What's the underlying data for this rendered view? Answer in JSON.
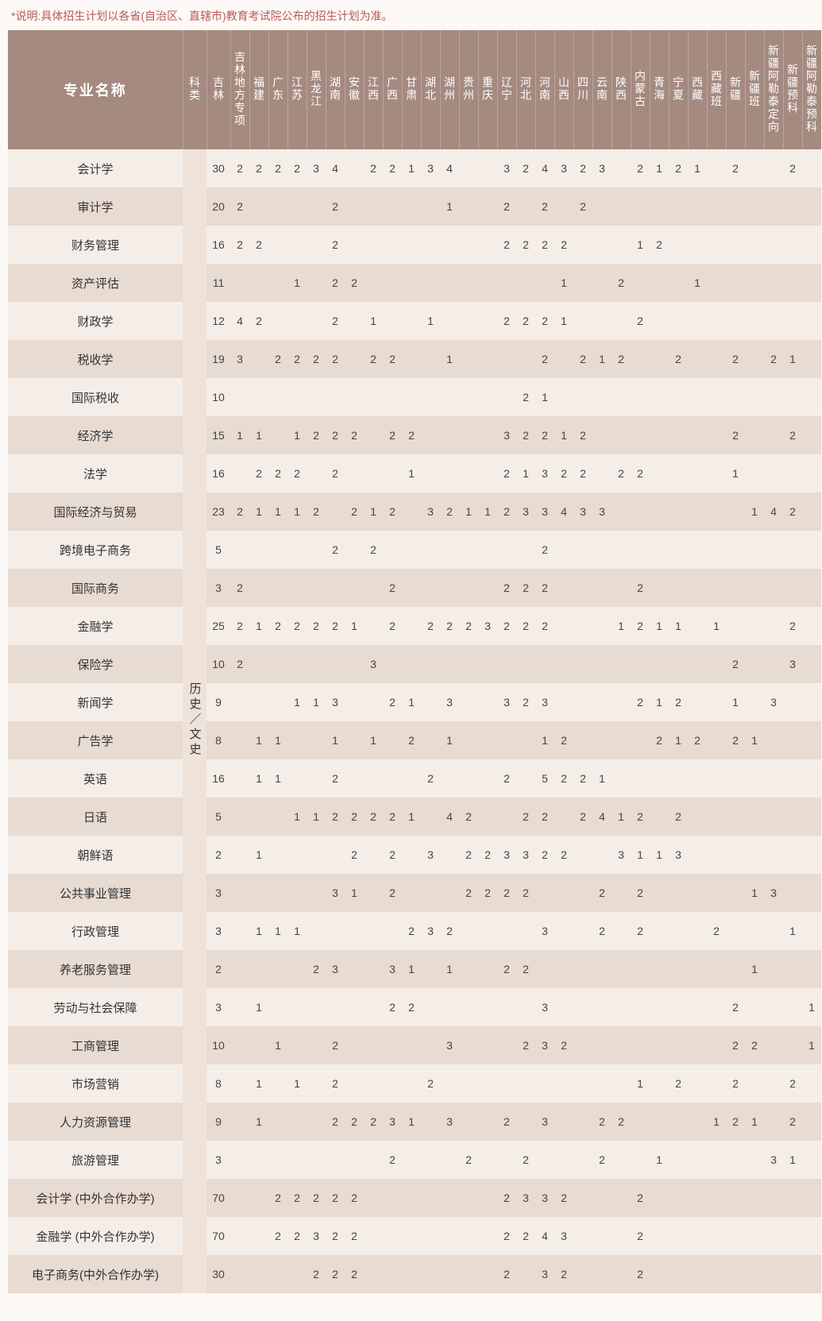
{
  "note": "*说明:具体招生计划以各省(自治区、直辖市)教育考试院公布的招生计划为准。",
  "header": {
    "major": "专业名称",
    "category": "科类",
    "provinces": [
      "吉林",
      "吉林地方专项",
      "福建",
      "广东",
      "江苏",
      "黑龙江",
      "湖南",
      "安徽",
      "江西",
      "广西",
      "甘肃",
      "湖北",
      "湖州",
      "贵州",
      "重庆",
      "辽宁",
      "河北",
      "河南",
      "山西",
      "四川",
      "云南",
      "陕西",
      "内蒙古",
      "青海",
      "宁夏",
      "西藏",
      "西藏班",
      "新疆",
      "新疆班",
      "新疆阿勒泰定向",
      "新疆预科",
      "新疆阿勒泰预科"
    ]
  },
  "category_label": "历史／文史",
  "rows": [
    {
      "major": "会计学",
      "v": [
        "30",
        "2",
        "2",
        "2",
        "2",
        "3",
        "4",
        "",
        "2",
        "2",
        "1",
        "3",
        "4",
        "",
        "",
        "3",
        "2",
        "4",
        "3",
        "2",
        "3",
        "",
        "2",
        "1",
        "2",
        "1",
        "",
        "2",
        "",
        "",
        "2",
        ""
      ]
    },
    {
      "major": "审计学",
      "v": [
        "20",
        "2",
        "",
        "",
        "",
        "",
        "2",
        "",
        "",
        "",
        "",
        "",
        "1",
        "",
        "",
        "2",
        "",
        "2",
        "",
        "2",
        "",
        "",
        "",
        "",
        "",
        "",
        "",
        "",
        "",
        "",
        "",
        ""
      ]
    },
    {
      "major": "财务管理",
      "v": [
        "16",
        "2",
        "2",
        "",
        "",
        "",
        "2",
        "",
        "",
        "",
        "",
        "",
        "",
        "",
        "",
        "2",
        "2",
        "2",
        "2",
        "",
        "",
        "",
        "1",
        "2",
        "",
        "",
        "",
        "",
        "",
        "",
        "",
        ""
      ]
    },
    {
      "major": "资产评估",
      "v": [
        "11",
        "",
        "",
        "",
        "1",
        "",
        "2",
        "2",
        "",
        "",
        "",
        "",
        "",
        "",
        "",
        "",
        "",
        "",
        "1",
        "",
        "",
        "2",
        "",
        "",
        "",
        "1",
        "",
        "",
        "",
        "",
        "",
        ""
      ]
    },
    {
      "major": "财政学",
      "v": [
        "12",
        "4",
        "2",
        "",
        "",
        "",
        "2",
        "",
        "1",
        "",
        "",
        "1",
        "",
        "",
        "",
        "2",
        "2",
        "2",
        "1",
        "",
        "",
        "",
        "2",
        "",
        "",
        "",
        "",
        "",
        "",
        "",
        "",
        ""
      ]
    },
    {
      "major": "税收学",
      "v": [
        "19",
        "3",
        "",
        "2",
        "2",
        "2",
        "2",
        "",
        "2",
        "2",
        "",
        "",
        "1",
        "",
        "",
        "",
        "",
        "2",
        "",
        "2",
        "1",
        "2",
        "",
        "",
        "2",
        "",
        "",
        "2",
        "",
        "2",
        "1",
        ""
      ]
    },
    {
      "major": "国际税收",
      "v": [
        "10",
        "",
        "",
        "",
        "",
        "",
        "",
        "",
        "",
        "",
        "",
        "",
        "",
        "",
        "",
        "",
        "2",
        "1",
        "",
        "",
        "",
        "",
        "",
        "",
        "",
        "",
        "",
        "",
        "",
        "",
        "",
        ""
      ]
    },
    {
      "major": "经济学",
      "v": [
        "15",
        "1",
        "1",
        "",
        "1",
        "2",
        "2",
        "2",
        "",
        "2",
        "2",
        "",
        "",
        "",
        "",
        "3",
        "2",
        "2",
        "1",
        "2",
        "",
        "",
        "",
        "",
        "",
        "",
        "",
        "2",
        "",
        "",
        "2",
        ""
      ]
    },
    {
      "major": "法学",
      "v": [
        "16",
        "",
        "2",
        "2",
        "2",
        "",
        "2",
        "",
        "",
        "",
        "1",
        "",
        "",
        "",
        "",
        "2",
        "1",
        "3",
        "2",
        "2",
        "",
        "2",
        "2",
        "",
        "",
        "",
        "",
        "1",
        "",
        "",
        "",
        ""
      ]
    },
    {
      "major": "国际经济与贸易",
      "v": [
        "23",
        "2",
        "1",
        "1",
        "1",
        "2",
        "",
        "2",
        "1",
        "2",
        "",
        "3",
        "2",
        "1",
        "1",
        "2",
        "3",
        "3",
        "4",
        "3",
        "3",
        "",
        "",
        "",
        "",
        "",
        "",
        "",
        "1",
        "4",
        "2",
        ""
      ]
    },
    {
      "major": "跨境电子商务",
      "v": [
        "5",
        "",
        "",
        "",
        "",
        "",
        "2",
        "",
        "2",
        "",
        "",
        "",
        "",
        "",
        "",
        "",
        "",
        "2",
        "",
        "",
        "",
        "",
        "",
        "",
        "",
        "",
        "",
        "",
        "",
        "",
        "",
        ""
      ]
    },
    {
      "major": "国际商务",
      "v": [
        "3",
        "2",
        "",
        "",
        "",
        "",
        "",
        "",
        "",
        "2",
        "",
        "",
        "",
        "",
        "",
        "2",
        "2",
        "2",
        "",
        "",
        "",
        "",
        "2",
        "",
        "",
        "",
        "",
        "",
        "",
        "",
        "",
        ""
      ]
    },
    {
      "major": "金融学",
      "v": [
        "25",
        "2",
        "1",
        "2",
        "2",
        "2",
        "2",
        "1",
        "",
        "2",
        "",
        "2",
        "2",
        "2",
        "3",
        "2",
        "2",
        "2",
        "",
        "",
        "",
        "1",
        "2",
        "1",
        "1",
        "",
        "1",
        "",
        "",
        "",
        "2",
        ""
      ]
    },
    {
      "major": "保险学",
      "v": [
        "10",
        "2",
        "",
        "",
        "",
        "",
        "",
        "",
        "3",
        "",
        "",
        "",
        "",
        "",
        "",
        "",
        "",
        "",
        "",
        "",
        "",
        "",
        "",
        "",
        "",
        "",
        "",
        "2",
        "",
        "",
        "3",
        ""
      ]
    },
    {
      "major": "新闻学",
      "v": [
        "9",
        "",
        "",
        "",
        "1",
        "1",
        "3",
        "",
        "",
        "2",
        "1",
        "",
        "3",
        "",
        "",
        "3",
        "2",
        "3",
        "",
        "",
        "",
        "",
        "2",
        "1",
        "2",
        "",
        "",
        "1",
        "",
        "3",
        "",
        ""
      ]
    },
    {
      "major": "广告学",
      "v": [
        "8",
        "",
        "1",
        "1",
        "",
        "",
        "1",
        "",
        "1",
        "",
        "2",
        "",
        "1",
        "",
        "",
        "",
        "",
        "1",
        "2",
        "",
        "",
        "",
        "",
        "2",
        "1",
        "2",
        "",
        "2",
        "1",
        "",
        "",
        ""
      ]
    },
    {
      "major": "英语",
      "v": [
        "16",
        "",
        "1",
        "1",
        "",
        "",
        "2",
        "",
        "",
        "",
        "",
        "2",
        "",
        "",
        "",
        "2",
        "",
        "5",
        "2",
        "2",
        "1",
        "",
        "",
        "",
        "",
        "",
        "",
        "",
        "",
        "",
        "",
        ""
      ]
    },
    {
      "major": "日语",
      "v": [
        "5",
        "",
        "",
        "",
        "1",
        "1",
        "2",
        "2",
        "2",
        "2",
        "1",
        "",
        "4",
        "2",
        "",
        "",
        "2",
        "2",
        "",
        "2",
        "4",
        "1",
        "2",
        "",
        "2",
        "",
        "",
        "",
        "",
        "",
        "",
        ""
      ]
    },
    {
      "major": "朝鲜语",
      "v": [
        "2",
        "",
        "1",
        "",
        "",
        "",
        "",
        "2",
        "",
        "2",
        "",
        "3",
        "",
        "2",
        "2",
        "3",
        "3",
        "2",
        "2",
        "",
        "",
        "3",
        "1",
        "1",
        "3",
        "",
        "",
        "",
        "",
        "",
        "",
        ""
      ]
    },
    {
      "major": "公共事业管理",
      "v": [
        "3",
        "",
        "",
        "",
        "",
        "",
        "3",
        "1",
        "",
        "2",
        "",
        "",
        "",
        "2",
        "2",
        "2",
        "2",
        "",
        "",
        "",
        "2",
        "",
        "2",
        "",
        "",
        "",
        "",
        "",
        "1",
        "3",
        "",
        ""
      ]
    },
    {
      "major": "行政管理",
      "v": [
        "3",
        "",
        "1",
        "1",
        "1",
        "",
        "",
        "",
        "",
        "",
        "2",
        "3",
        "2",
        "",
        "",
        "",
        "",
        "3",
        "",
        "",
        "2",
        "",
        "2",
        "",
        "",
        "",
        "2",
        "",
        "",
        "",
        "1",
        ""
      ]
    },
    {
      "major": "养老服务管理",
      "v": [
        "2",
        "",
        "",
        "",
        "",
        "2",
        "3",
        "",
        "",
        "3",
        "1",
        "",
        "1",
        "",
        "",
        "2",
        "2",
        "",
        "",
        "",
        "",
        "",
        "",
        "",
        "",
        "",
        "",
        "",
        "1",
        "",
        "",
        ""
      ]
    },
    {
      "major": "劳动与社会保障",
      "v": [
        "3",
        "",
        "1",
        "",
        "",
        "",
        "",
        "",
        "",
        "2",
        "2",
        "",
        "",
        "",
        "",
        "",
        "",
        "3",
        "",
        "",
        "",
        "",
        "",
        "",
        "",
        "",
        "",
        "2",
        "",
        "",
        "",
        "1"
      ]
    },
    {
      "major": "工商管理",
      "v": [
        "10",
        "",
        "",
        "1",
        "",
        "",
        "2",
        "",
        "",
        "",
        "",
        "",
        "3",
        "",
        "",
        "",
        "2",
        "3",
        "2",
        "",
        "",
        "",
        "",
        "",
        "",
        "",
        "",
        "2",
        "2",
        "",
        "",
        "1"
      ]
    },
    {
      "major": "市场营销",
      "v": [
        "8",
        "",
        "1",
        "",
        "1",
        "",
        "2",
        "",
        "",
        "",
        "",
        "2",
        "",
        "",
        "",
        "",
        "",
        "",
        "",
        "",
        "",
        "",
        "1",
        "",
        "2",
        "",
        "",
        "2",
        "",
        "",
        "2",
        ""
      ]
    },
    {
      "major": "人力资源管理",
      "v": [
        "9",
        "",
        "1",
        "",
        "",
        "",
        "2",
        "2",
        "2",
        "3",
        "1",
        "",
        "3",
        "",
        "",
        "2",
        "",
        "3",
        "",
        "",
        "2",
        "2",
        "",
        "",
        "",
        "",
        "1",
        "2",
        "1",
        "",
        "2",
        ""
      ]
    },
    {
      "major": "旅游管理",
      "v": [
        "3",
        "",
        "",
        "",
        "",
        "",
        "",
        "",
        "",
        "2",
        "",
        "",
        "",
        "2",
        "",
        "",
        "2",
        "",
        "",
        "",
        "2",
        "",
        "",
        "1",
        "",
        "",
        "",
        "",
        "",
        "3",
        "1",
        ""
      ]
    },
    {
      "major": "会计学 (中外合作办学)",
      "v": [
        "70",
        "",
        "",
        "2",
        "2",
        "2",
        "2",
        "2",
        "",
        "",
        "",
        "",
        "",
        "",
        "",
        "2",
        "3",
        "3",
        "2",
        "",
        "",
        "",
        "2",
        "",
        "",
        "",
        "",
        "",
        "",
        "",
        "",
        ""
      ]
    },
    {
      "major": "金融学 (中外合作办学)",
      "v": [
        "70",
        "",
        "",
        "2",
        "2",
        "3",
        "2",
        "2",
        "",
        "",
        "",
        "",
        "",
        "",
        "",
        "2",
        "2",
        "4",
        "3",
        "",
        "",
        "",
        "2",
        "",
        "",
        "",
        "",
        "",
        "",
        "",
        "",
        ""
      ]
    },
    {
      "major": "电子商务(中外合作办学)",
      "v": [
        "30",
        "",
        "",
        "",
        "",
        "2",
        "2",
        "2",
        "",
        "",
        "",
        "",
        "",
        "",
        "",
        "2",
        "",
        "3",
        "2",
        "",
        "",
        "",
        "2",
        "",
        "",
        "",
        "",
        "",
        "",
        "",
        "",
        ""
      ]
    }
  ]
}
